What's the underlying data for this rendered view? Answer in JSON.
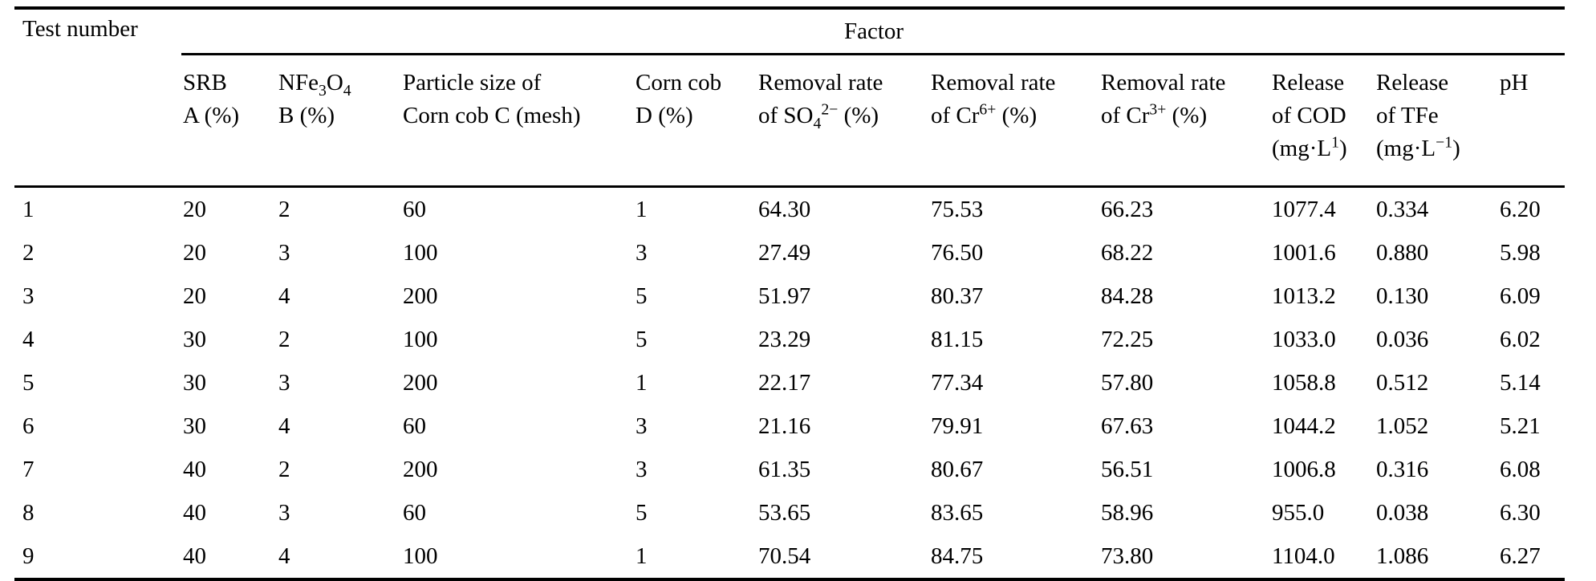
{
  "table": {
    "corner_header": "Test number",
    "group_header": "Factor",
    "colors": {
      "text": "#000000",
      "rule": "#000000",
      "background": "#ffffff"
    },
    "columns": [
      {
        "id": "srb",
        "lines": [
          [
            {
              "t": "SRB"
            }
          ],
          [
            {
              "t": "A (%)"
            }
          ]
        ]
      },
      {
        "id": "nfe3o4",
        "lines": [
          [
            {
              "t": "NFe"
            },
            {
              "t": "3",
              "s": "sub"
            },
            {
              "t": "O"
            },
            {
              "t": "4",
              "s": "sub"
            }
          ],
          [
            {
              "t": "B (%)"
            }
          ]
        ]
      },
      {
        "id": "particle-size",
        "lines": [
          [
            {
              "t": "Particle size of"
            }
          ],
          [
            {
              "t": "Corn cob C (mesh)"
            }
          ]
        ]
      },
      {
        "id": "corn-cob",
        "lines": [
          [
            {
              "t": "Corn cob"
            }
          ],
          [
            {
              "t": "D (%)"
            }
          ]
        ]
      },
      {
        "id": "removal-so4",
        "lines": [
          [
            {
              "t": "Removal rate"
            }
          ],
          [
            {
              "t": "of SO"
            },
            {
              "t": "4",
              "s": "sub"
            },
            {
              "t": "2−",
              "s": "sup"
            },
            {
              "t": " (%)"
            }
          ]
        ]
      },
      {
        "id": "removal-cr6",
        "lines": [
          [
            {
              "t": "Removal rate"
            }
          ],
          [
            {
              "t": "of Cr"
            },
            {
              "t": "6+",
              "s": "sup"
            },
            {
              "t": " (%)"
            }
          ]
        ]
      },
      {
        "id": "removal-cr3",
        "lines": [
          [
            {
              "t": "Removal rate"
            }
          ],
          [
            {
              "t": "of Cr"
            },
            {
              "t": "3+",
              "s": "sup"
            },
            {
              "t": " (%)"
            }
          ]
        ]
      },
      {
        "id": "release-cod",
        "lines": [
          [
            {
              "t": "Release"
            }
          ],
          [
            {
              "t": "of COD"
            }
          ],
          [
            {
              "t": "(mg·L"
            },
            {
              "t": "1",
              "s": "sup"
            },
            {
              "t": ")"
            }
          ]
        ]
      },
      {
        "id": "release-tfe",
        "lines": [
          [
            {
              "t": "Release"
            }
          ],
          [
            {
              "t": "of TFe"
            }
          ],
          [
            {
              "t": "(mg·L"
            },
            {
              "t": "−1",
              "s": "sup"
            },
            {
              "t": ")"
            }
          ]
        ]
      },
      {
        "id": "ph",
        "lines": [
          [
            {
              "t": "pH"
            }
          ]
        ]
      }
    ],
    "rows": [
      [
        "1",
        "20",
        "2",
        "60",
        "1",
        "64.30",
        "75.53",
        "66.23",
        "1077.4",
        "0.334",
        "6.20"
      ],
      [
        "2",
        "20",
        "3",
        "100",
        "3",
        "27.49",
        "76.50",
        "68.22",
        "1001.6",
        "0.880",
        "5.98"
      ],
      [
        "3",
        "20",
        "4",
        "200",
        "5",
        "51.97",
        "80.37",
        "84.28",
        "1013.2",
        "0.130",
        "6.09"
      ],
      [
        "4",
        "30",
        "2",
        "100",
        "5",
        "23.29",
        "81.15",
        "72.25",
        "1033.0",
        "0.036",
        "6.02"
      ],
      [
        "5",
        "30",
        "3",
        "200",
        "1",
        "22.17",
        "77.34",
        "57.80",
        "1058.8",
        "0.512",
        "5.14"
      ],
      [
        "6",
        "30",
        "4",
        "60",
        "3",
        "21.16",
        "79.91",
        "67.63",
        "1044.2",
        "1.052",
        "5.21"
      ],
      [
        "7",
        "40",
        "2",
        "200",
        "3",
        "61.35",
        "80.67",
        "56.51",
        "1006.8",
        "0.316",
        "6.08"
      ],
      [
        "8",
        "40",
        "3",
        "60",
        "5",
        "53.65",
        "83.65",
        "58.96",
        "955.0",
        "0.038",
        "6.30"
      ],
      [
        "9",
        "40",
        "4",
        "100",
        "1",
        "70.54",
        "84.75",
        "73.80",
        "1104.0",
        "1.086",
        "6.27"
      ]
    ]
  }
}
